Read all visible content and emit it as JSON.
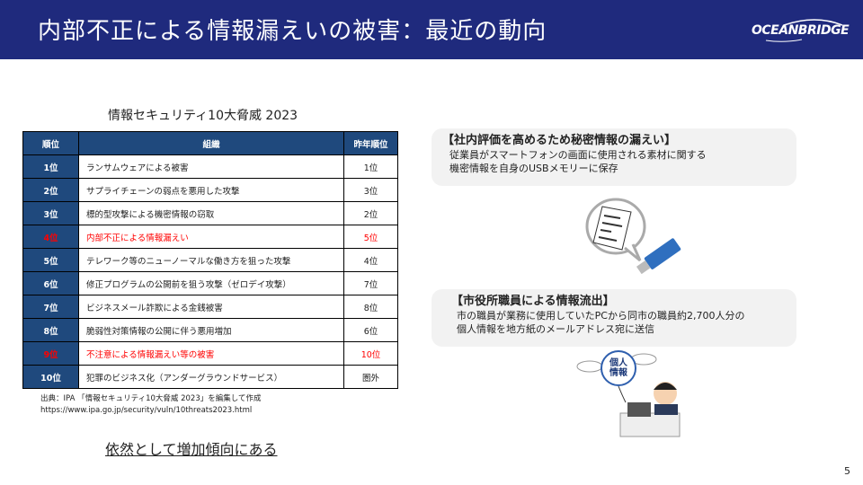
{
  "header": {
    "title": "内部不正による情報漏えいの被害：最近の動向",
    "logo_text": "OCEANBRIDGE",
    "bg_color": "#1f2a7d"
  },
  "table": {
    "caption": "情報セキュリティ10大脅威 2023",
    "headers": [
      "順位",
      "組織",
      "昨年順位"
    ],
    "highlight_color": "#ff0000",
    "rows": [
      {
        "rank": "1位",
        "name": "ランサムウェアによる被害",
        "prev": "1位",
        "highlight": false
      },
      {
        "rank": "2位",
        "name": "サプライチェーンの弱点を悪用した攻撃",
        "prev": "3位",
        "highlight": false
      },
      {
        "rank": "3位",
        "name": "標的型攻撃による機密情報の窃取",
        "prev": "2位",
        "highlight": false
      },
      {
        "rank": "4位",
        "name": "内部不正による情報漏えい",
        "prev": "5位",
        "highlight": true
      },
      {
        "rank": "5位",
        "name": "テレワーク等のニューノーマルな働き方を狙った攻撃",
        "prev": "4位",
        "highlight": false
      },
      {
        "rank": "6位",
        "name": "修正プログラムの公開前を狙う攻撃（ゼロデイ攻撃）",
        "prev": "7位",
        "highlight": false
      },
      {
        "rank": "7位",
        "name": "ビジネスメール詐欺による金銭被害",
        "prev": "8位",
        "highlight": false
      },
      {
        "rank": "8位",
        "name": "脆弱性対策情報の公開に伴う悪用増加",
        "prev": "6位",
        "highlight": false
      },
      {
        "rank": "9位",
        "name": "不注意による情報漏えい等の被害",
        "prev": "10位",
        "highlight": true
      },
      {
        "rank": "10位",
        "name": "犯罪のビジネス化（アンダーグラウンドサービス）",
        "prev": "圏外",
        "highlight": false
      }
    ]
  },
  "source": {
    "line1": "出典：IPA 「情報セキュリティ10大脅威 2023」を編集して作成",
    "line2": "https://www.ipa.go.jp/security/vuln/10threats2023.html"
  },
  "trend_text": "依然として増加傾向にある",
  "case1": {
    "title": "【社内評価を高めるため秘密情報の漏えい】",
    "line1": "従業員がスマートフォンの画面に使用される素材に関する",
    "line2": "機密情報を自身のUSBメモリーに保存"
  },
  "case2": {
    "title": "【市役所職員による情報流出】",
    "line1": "市の職員が業務に使用していたPCから同市の職員約2,700人分の",
    "line2": "個人情報を地方紙のメールアドレス宛に送信"
  },
  "illustration2_text": "個人情報",
  "page_number": "5"
}
